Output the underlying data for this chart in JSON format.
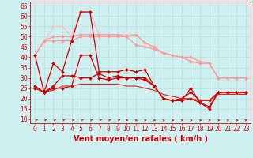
{
  "xlabel": "Vent moyen/en rafales ( km/h )",
  "background_color": "#cff0f0",
  "grid_color": "#bbdddd",
  "xlim": [
    -0.5,
    23.5
  ],
  "ylim": [
    8,
    67
  ],
  "yticks": [
    10,
    15,
    20,
    25,
    30,
    35,
    40,
    45,
    50,
    55,
    60,
    65
  ],
  "xticks": [
    0,
    1,
    2,
    3,
    4,
    5,
    6,
    7,
    8,
    9,
    10,
    11,
    12,
    13,
    14,
    15,
    16,
    17,
    18,
    19,
    20,
    21,
    22,
    23
  ],
  "series": [
    {
      "x": [
        0,
        1,
        2,
        3,
        4,
        5,
        6,
        7,
        8,
        9,
        10,
        11,
        12,
        13,
        14,
        15,
        16,
        17,
        18,
        19,
        20,
        21,
        22,
        23
      ],
      "y": [
        41,
        47,
        55,
        55,
        50,
        62,
        62,
        51,
        51,
        51,
        51,
        51,
        47,
        45,
        42,
        41,
        40,
        38,
        37,
        37,
        30,
        30,
        30,
        30
      ],
      "color": "#ffbbbb",
      "marker": null,
      "markersize": 0,
      "linewidth": 0.9,
      "alpha": 1.0
    },
    {
      "x": [
        0,
        1,
        2,
        3,
        4,
        5,
        6,
        7,
        8,
        9,
        10,
        11,
        12,
        13,
        14,
        15,
        16,
        17,
        18,
        19,
        20,
        21,
        22,
        23
      ],
      "y": [
        41,
        48,
        50,
        50,
        50,
        51,
        51,
        51,
        51,
        51,
        50,
        51,
        47,
        45,
        42,
        41,
        40,
        38,
        37,
        37,
        30,
        30,
        30,
        30
      ],
      "color": "#ff9999",
      "marker": "D",
      "markersize": 2,
      "linewidth": 0.9,
      "alpha": 1.0
    },
    {
      "x": [
        0,
        1,
        2,
        3,
        4,
        5,
        6,
        7,
        8,
        9,
        10,
        11,
        12,
        13,
        14,
        15,
        16,
        17,
        18,
        19,
        20,
        21,
        22,
        23
      ],
      "y": [
        41,
        48,
        48,
        48,
        48,
        50,
        50,
        50,
        50,
        50,
        50,
        46,
        45,
        44,
        42,
        41,
        40,
        40,
        38,
        37,
        30,
        30,
        30,
        30
      ],
      "color": "#ff9999",
      "marker": "D",
      "markersize": 2,
      "linewidth": 0.9,
      "alpha": 1.0
    },
    {
      "x": [
        0,
        1,
        2,
        3,
        4,
        5,
        6,
        7,
        8,
        9,
        10,
        11,
        12,
        13,
        14,
        15,
        16,
        17,
        18,
        19,
        20,
        21,
        22,
        23
      ],
      "y": [
        41,
        23,
        37,
        33,
        48,
        62,
        62,
        33,
        33,
        33,
        34,
        33,
        34,
        26,
        20,
        19,
        19,
        20,
        18,
        15,
        23,
        23,
        23,
        23
      ],
      "color": "#cc0000",
      "marker": "D",
      "markersize": 2,
      "linewidth": 0.9,
      "alpha": 1.0
    },
    {
      "x": [
        0,
        1,
        2,
        3,
        4,
        5,
        6,
        7,
        8,
        9,
        10,
        11,
        12,
        13,
        14,
        15,
        16,
        17,
        18,
        19,
        20,
        21,
        22,
        23
      ],
      "y": [
        25,
        23,
        25,
        25,
        26,
        41,
        41,
        30,
        29,
        30,
        30,
        30,
        29,
        26,
        20,
        19,
        20,
        23,
        19,
        19,
        23,
        23,
        23,
        23
      ],
      "color": "#cc0000",
      "marker": "D",
      "markersize": 2,
      "linewidth": 0.9,
      "alpha": 1.0
    },
    {
      "x": [
        0,
        1,
        2,
        3,
        4,
        5,
        6,
        7,
        8,
        9,
        10,
        11,
        12,
        13,
        14,
        15,
        16,
        17,
        18,
        19,
        20,
        21,
        22,
        23
      ],
      "y": [
        26,
        23,
        26,
        31,
        31,
        30,
        30,
        32,
        30,
        31,
        30,
        30,
        30,
        26,
        20,
        19,
        19,
        25,
        18,
        16,
        23,
        23,
        23,
        23
      ],
      "color": "#cc0000",
      "marker": "D",
      "markersize": 2,
      "linewidth": 0.9,
      "alpha": 1.0
    },
    {
      "x": [
        0,
        1,
        2,
        3,
        4,
        5,
        6,
        7,
        8,
        9,
        10,
        11,
        12,
        13,
        14,
        15,
        16,
        17,
        18,
        19,
        20,
        21,
        22,
        23
      ],
      "y": [
        25,
        23,
        24,
        26,
        26,
        27,
        27,
        27,
        27,
        27,
        26,
        26,
        25,
        24,
        22,
        21,
        20,
        20,
        19,
        19,
        22,
        22,
        22,
        22
      ],
      "color": "#dd2222",
      "marker": null,
      "markersize": 0,
      "linewidth": 0.8,
      "alpha": 1.0
    }
  ],
  "arrow_color": "#cc0000",
  "tick_fontsize": 5.5,
  "label_fontsize": 7
}
